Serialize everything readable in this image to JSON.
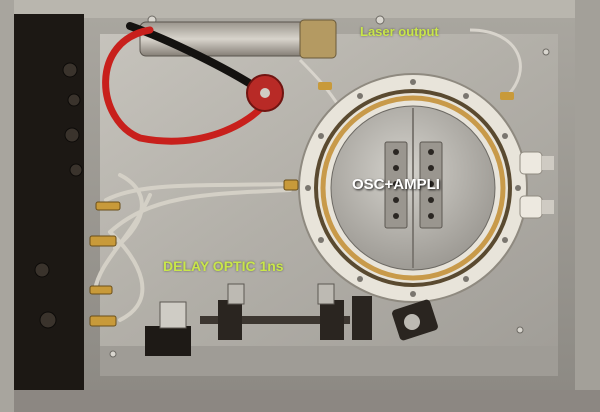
{
  "labels": {
    "laser_output": "Laser output",
    "osc_ampli": "OSC+AMPLI",
    "delay_optic": "DELAY OPTIC 1ns"
  },
  "colors": {
    "label_green": "#c9e64a",
    "label_white": "#ffffff",
    "aluminum": "#b8b5ae",
    "red_cable": "#c8201c",
    "ptfe_ring": "#e8e4da"
  }
}
